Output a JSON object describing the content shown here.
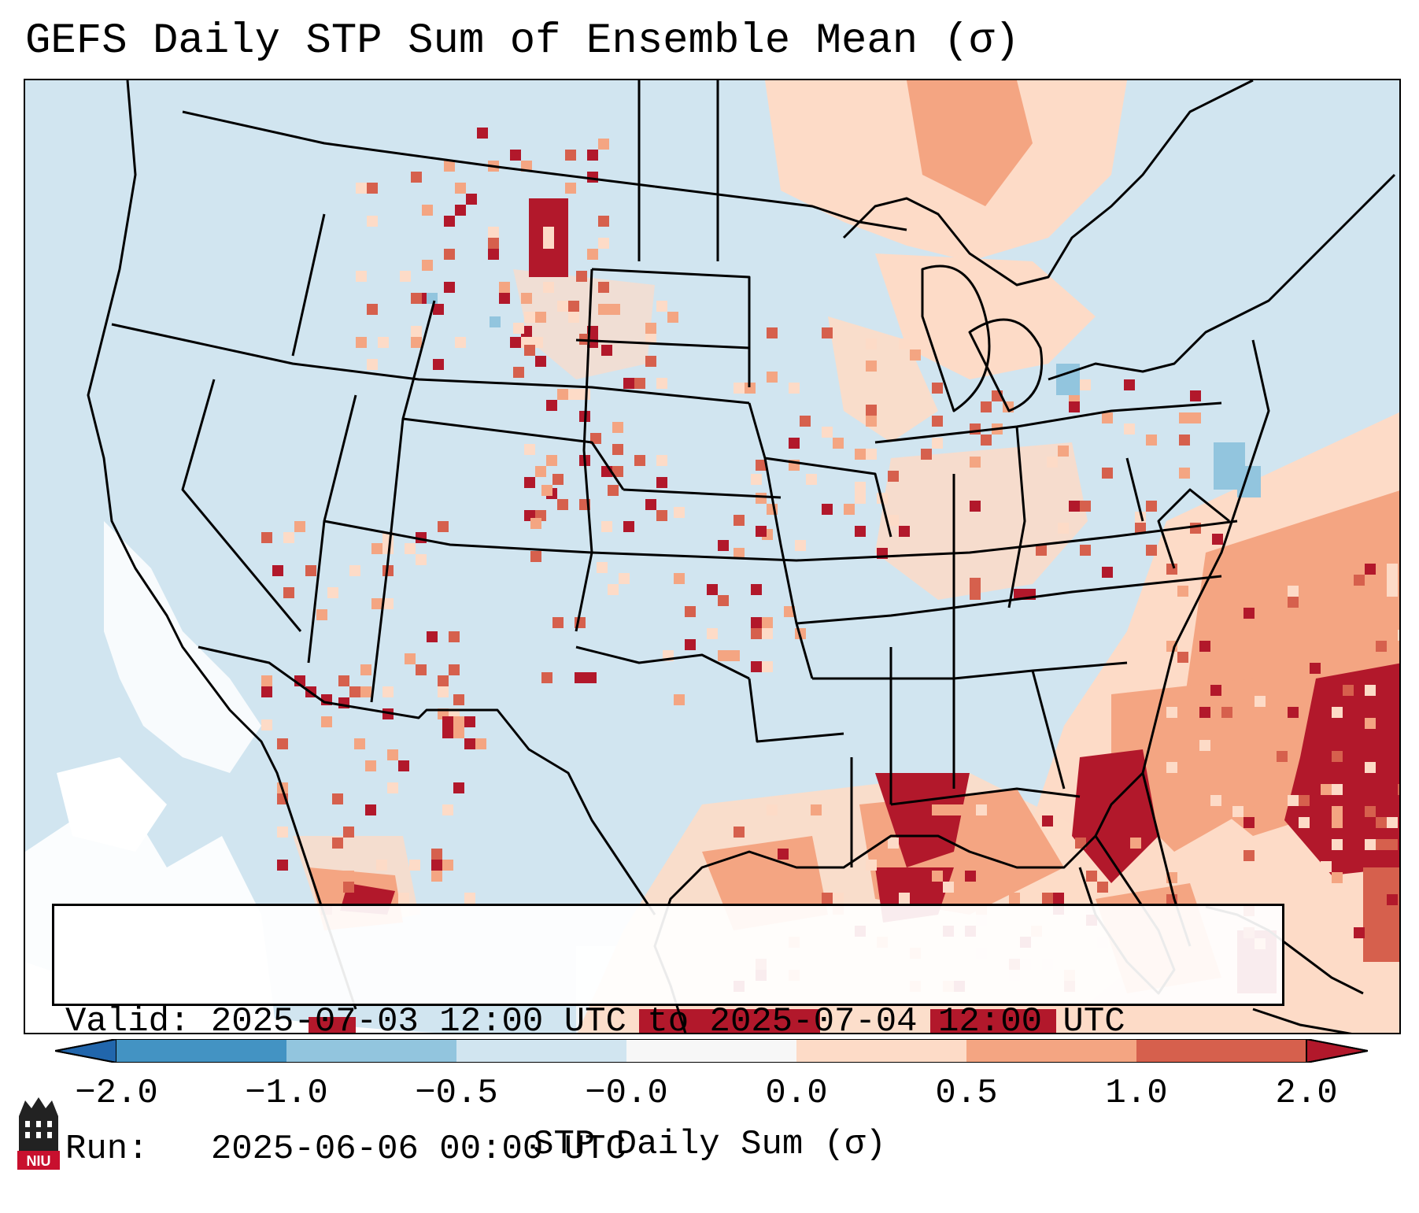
{
  "title": "GEFS Daily STP Sum of Ensemble Mean (σ)",
  "info": {
    "valid_label": "Valid: ",
    "valid_value": "2025-07-03 12:00 UTC to 2025-07-04 12:00 UTC",
    "run_label": "Run:   ",
    "run_value": "2025-06-06 00:00 UTC"
  },
  "colorbar": {
    "label": "STP Daily Sum (σ)",
    "ticks": [
      "−2.0",
      "−1.0",
      "−0.5",
      "−0.0",
      "0.0",
      "0.5",
      "1.0",
      "2.0"
    ],
    "colors": [
      "#4393c3",
      "#92c5de",
      "#d1e5f0",
      "#f7f7f7",
      "#fddbc7",
      "#f4a582",
      "#d6604d"
    ],
    "extend_low_color": "#2166ac",
    "extend_high_color": "#b2182b"
  },
  "map": {
    "background_color": "#d1e5f0",
    "domain": "Continental United States",
    "labels": []
  },
  "logo": {
    "text": "NIU",
    "icon": "university-seal-icon"
  }
}
